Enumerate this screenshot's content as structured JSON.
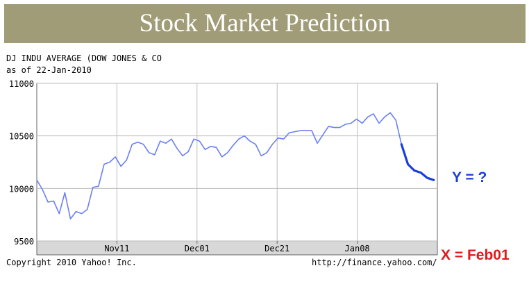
{
  "banner": {
    "title": "Stock Market Prediction"
  },
  "header": {
    "line1": "DJ INDU AVERAGE (DOW JONES & CO",
    "line2": "as of 22-Jan-2010"
  },
  "footer": {
    "copyright": "Copyright 2010 Yahoo! Inc.",
    "url": "http://finance.yahoo.com/"
  },
  "annotations": {
    "y_label": "Y = ?",
    "y_color": "#1a3de0",
    "x_label": "X = Feb01",
    "x_color": "#e01a1a"
  },
  "chart_data": {
    "type": "line",
    "ylim": [
      9500,
      11000
    ],
    "yticks": [
      11000,
      10500,
      10000,
      9500
    ],
    "xticks": [
      "Nov11",
      "Dec01",
      "Dec21",
      "Jan08"
    ],
    "grid": true,
    "series": [
      {
        "color": "#6a7ff5",
        "values": [
          10080,
          9990,
          9870,
          9880,
          9760,
          9960,
          9710,
          9780,
          9760,
          9800,
          10010,
          10020,
          10230,
          10250,
          10300,
          10210,
          10270,
          10420,
          10440,
          10420,
          10340,
          10320,
          10450,
          10430,
          10470,
          10380,
          10310,
          10350,
          10470,
          10450,
          10370,
          10400,
          10390,
          10300,
          10340,
          10410,
          10470,
          10500,
          10450,
          10420,
          10310,
          10340,
          10420,
          10480,
          10470,
          10530,
          10540,
          10550,
          10550,
          10550,
          10430,
          10510,
          10590,
          10580,
          10580,
          10610,
          10620,
          10660,
          10620,
          10680,
          10710,
          10620,
          10680,
          10720,
          10650,
          10420
        ]
      },
      {
        "color": "#1a3de0",
        "values": [
          10420,
          10230,
          10170,
          10150,
          10100,
          10080
        ]
      }
    ]
  }
}
